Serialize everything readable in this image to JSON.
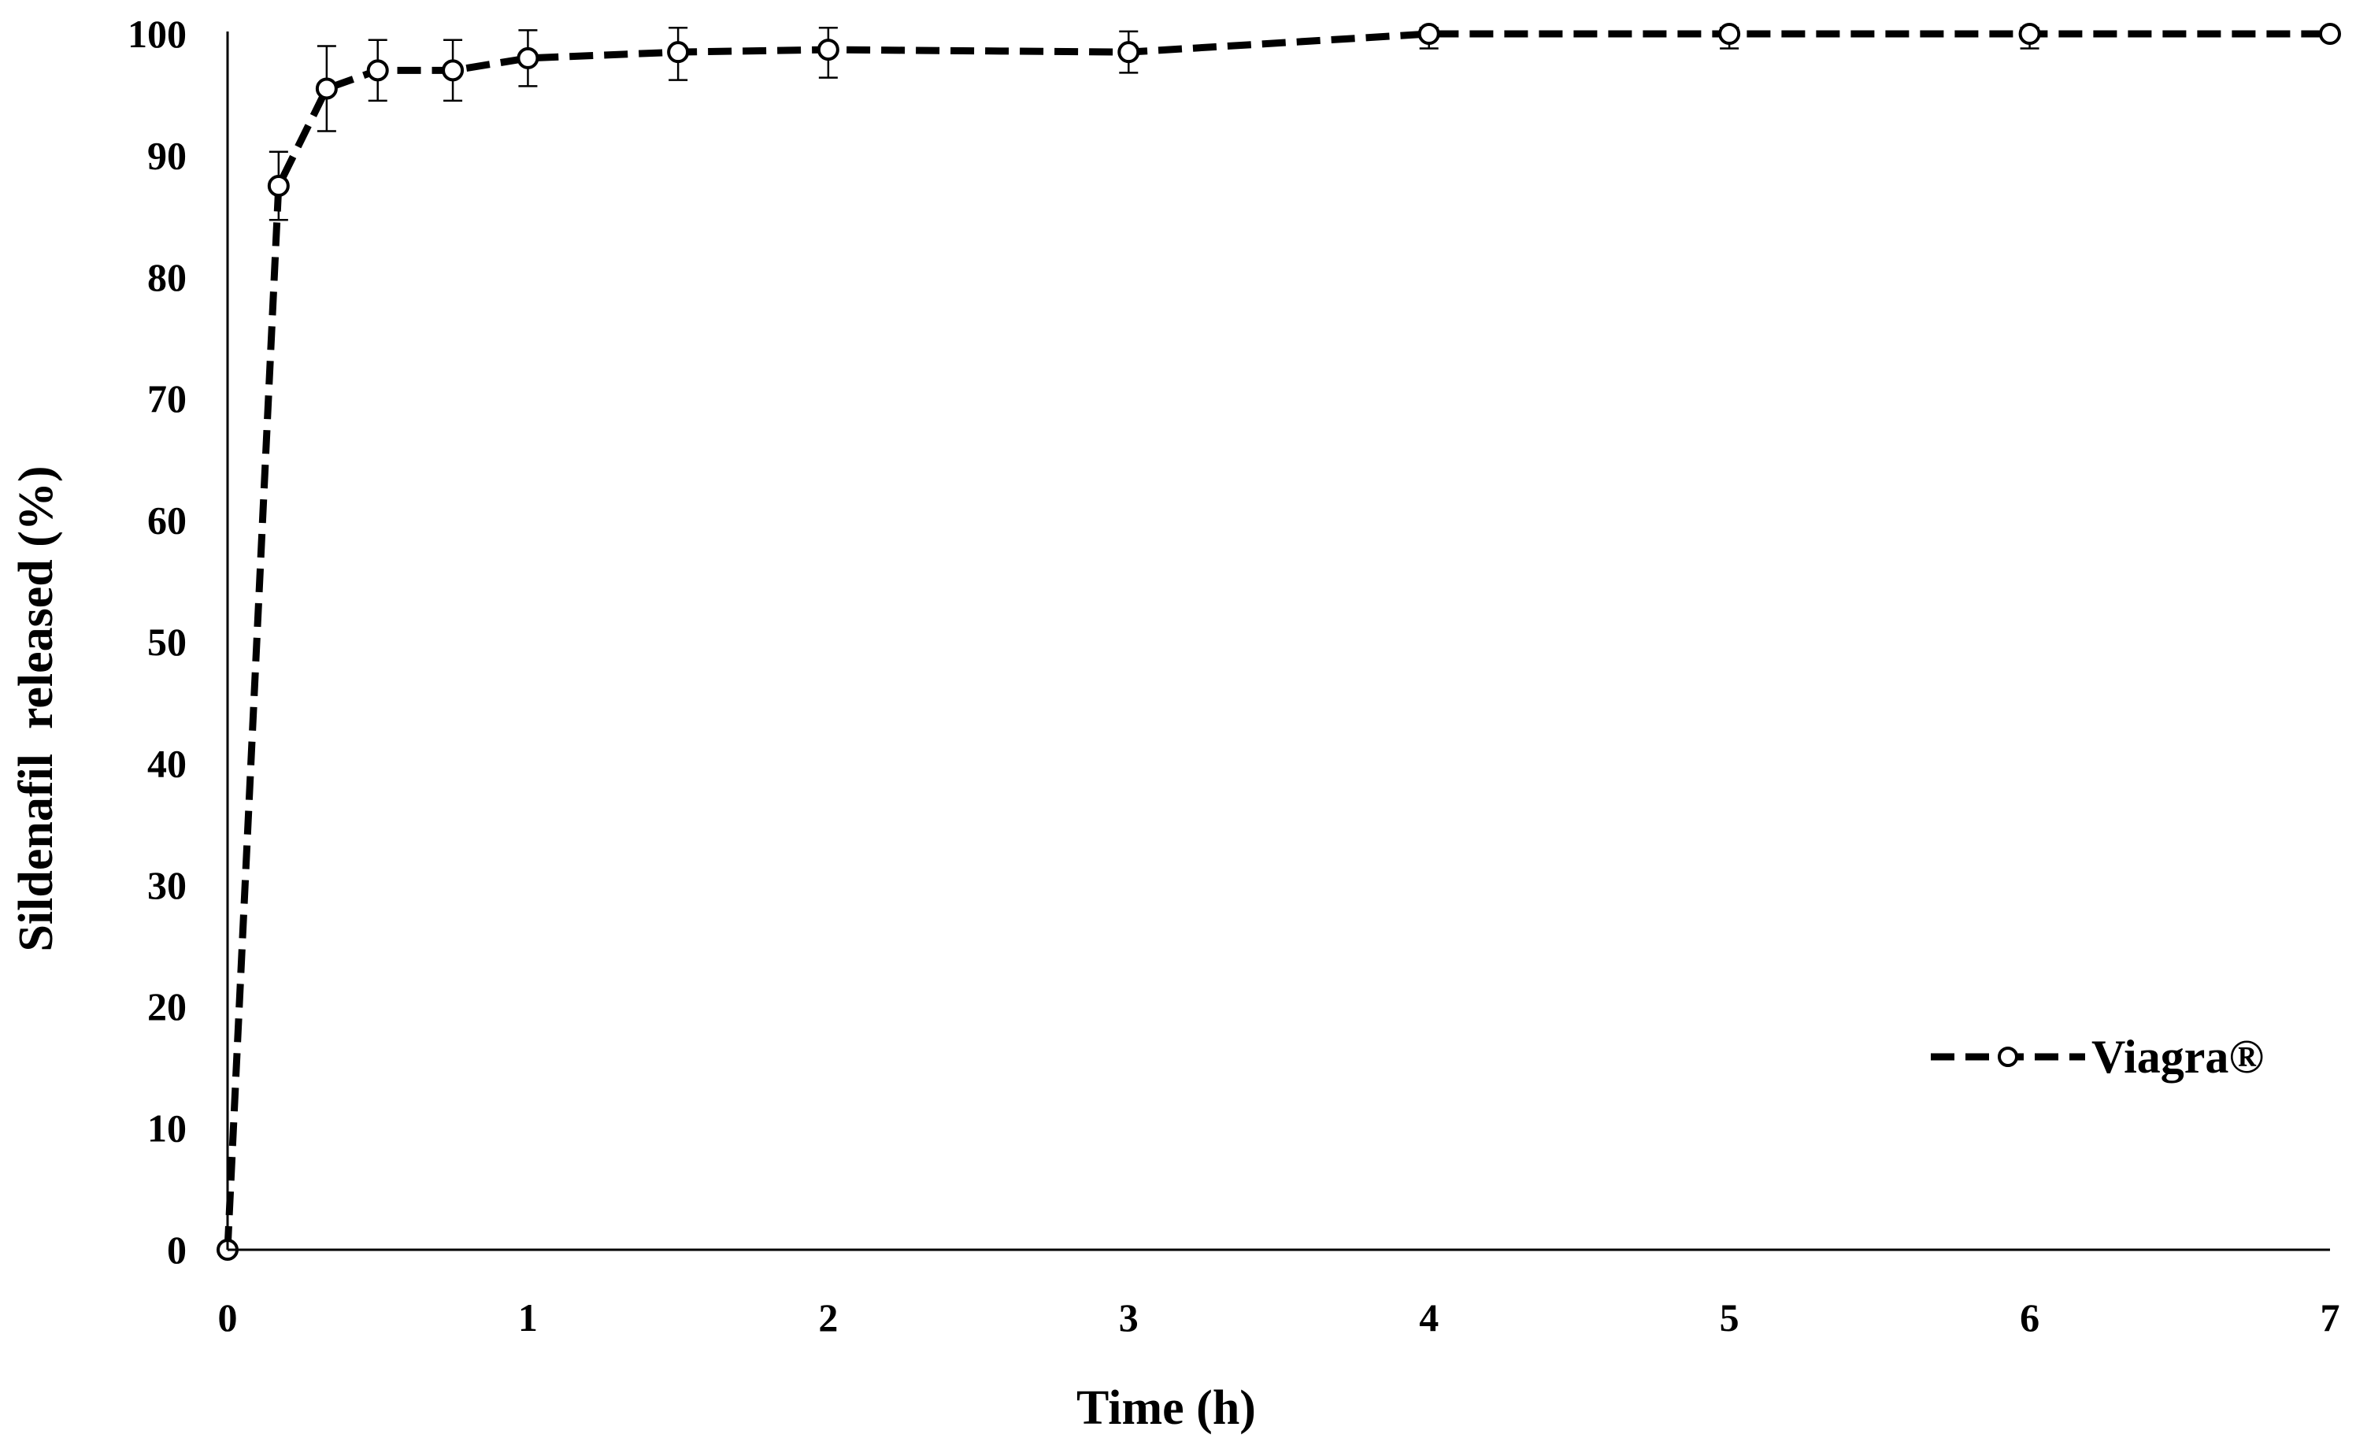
{
  "chart_data": {
    "type": "line",
    "title": "",
    "xlabel": "Time (h)",
    "ylabel": "Sildenafil  released (%)",
    "xlim": [
      0,
      7
    ],
    "ylim": [
      0,
      100
    ],
    "x_ticks": [
      0,
      1,
      2,
      3,
      4,
      5,
      6,
      7
    ],
    "y_ticks": [
      0,
      10,
      20,
      30,
      40,
      50,
      60,
      70,
      80,
      90,
      100
    ],
    "grid": false,
    "legend_position": "bottom-right",
    "series": [
      {
        "name": "Viagra®",
        "line_style": "dashed",
        "marker": "open-circle",
        "color": "#000000",
        "x": [
          0,
          0.17,
          0.33,
          0.5,
          0.75,
          1,
          1.5,
          2,
          3,
          4,
          5,
          6,
          7
        ],
        "y": [
          0,
          87.5,
          95.5,
          97,
          97,
          98,
          98.5,
          98.7,
          98.5,
          100,
          100,
          100,
          100
        ],
        "error": [
          0,
          2.8,
          3.5,
          2.5,
          2.5,
          2.3,
          2.3,
          2.3,
          1.7,
          1.2,
          1.2,
          1.2,
          0
        ]
      }
    ]
  }
}
